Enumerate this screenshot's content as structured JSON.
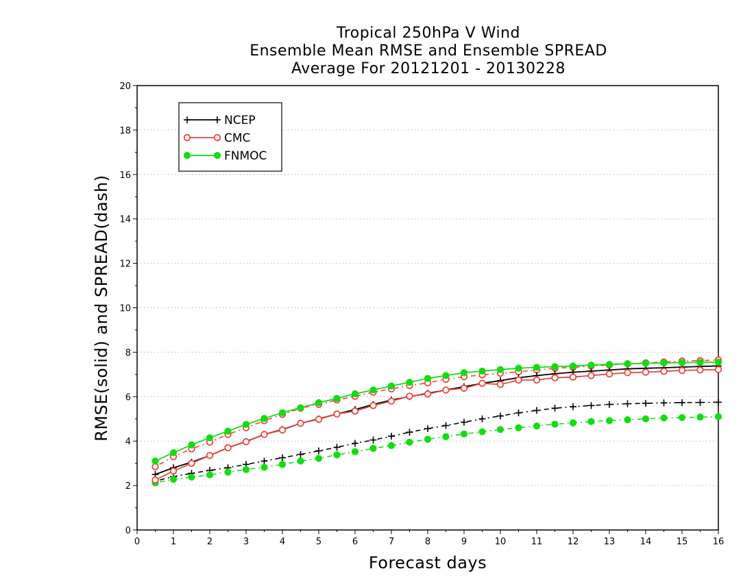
{
  "chart_data": {
    "type": "line",
    "title_lines": [
      "Tropical 250hPa V Wind",
      "Ensemble Mean RMSE and Ensemble SPREAD",
      "Average For 20121201 - 20130228"
    ],
    "xlabel": "Forecast days",
    "ylabel": "RMSE(solid) and SPREAD(dash)",
    "xlim": [
      0,
      16
    ],
    "ylim": [
      0,
      20
    ],
    "xticks": [
      0,
      1,
      2,
      3,
      4,
      5,
      6,
      7,
      8,
      9,
      10,
      11,
      12,
      13,
      14,
      15,
      16
    ],
    "yticks": [
      0,
      2,
      4,
      6,
      8,
      10,
      12,
      14,
      16,
      18,
      20
    ],
    "grid": "horizontal dotted",
    "legend_position": "top-left",
    "x": [
      0.5,
      1,
      1.5,
      2,
      2.5,
      3,
      3.5,
      4,
      4.5,
      5,
      5.5,
      6,
      6.5,
      7,
      7.5,
      8,
      8.5,
      9,
      9.5,
      10,
      10.5,
      11,
      11.5,
      12,
      12.5,
      13,
      13.5,
      14,
      14.5,
      15,
      15.5,
      16
    ],
    "series": [
      {
        "name": "NCEP",
        "metric": "RMSE",
        "style": "solid",
        "marker": "plus",
        "color": "#000000",
        "values": [
          2.5,
          2.8,
          3.05,
          3.35,
          3.7,
          3.98,
          4.3,
          4.52,
          4.8,
          5.0,
          5.22,
          5.42,
          5.65,
          5.85,
          6.0,
          6.15,
          6.3,
          6.45,
          6.6,
          6.72,
          6.85,
          6.95,
          7.03,
          7.1,
          7.15,
          7.2,
          7.25,
          7.28,
          7.3,
          7.33,
          7.36,
          7.38
        ]
      },
      {
        "name": "NCEP",
        "metric": "SPREAD",
        "style": "dash",
        "marker": "plus",
        "color": "#000000",
        "values": [
          2.2,
          2.4,
          2.55,
          2.68,
          2.8,
          2.95,
          3.1,
          3.25,
          3.4,
          3.56,
          3.72,
          3.9,
          4.05,
          4.22,
          4.4,
          4.56,
          4.7,
          4.85,
          5.0,
          5.13,
          5.27,
          5.38,
          5.48,
          5.55,
          5.6,
          5.65,
          5.68,
          5.7,
          5.72,
          5.73,
          5.74,
          5.75
        ]
      },
      {
        "name": "CMC",
        "metric": "RMSE",
        "style": "solid",
        "marker": "open-circle",
        "color": "#e8453c",
        "values": [
          2.25,
          2.65,
          3.0,
          3.35,
          3.7,
          3.97,
          4.3,
          4.5,
          4.8,
          4.98,
          5.22,
          5.35,
          5.6,
          5.8,
          6.02,
          6.12,
          6.3,
          6.38,
          6.6,
          6.55,
          6.75,
          6.75,
          6.85,
          6.88,
          6.95,
          7.02,
          7.08,
          7.1,
          7.14,
          7.18,
          7.2,
          7.22
        ]
      },
      {
        "name": "CMC",
        "metric": "SPREAD",
        "style": "dash",
        "marker": "open-circle",
        "color": "#e8453c",
        "values": [
          2.85,
          3.3,
          3.65,
          3.95,
          4.3,
          4.6,
          4.92,
          5.2,
          5.48,
          5.65,
          5.85,
          6.02,
          6.2,
          6.35,
          6.5,
          6.62,
          6.78,
          6.9,
          6.98,
          7.05,
          7.12,
          7.2,
          7.28,
          7.32,
          7.38,
          7.43,
          7.48,
          7.52,
          7.56,
          7.6,
          7.62,
          7.65
        ]
      },
      {
        "name": "FNMOC",
        "metric": "RMSE",
        "style": "solid",
        "marker": "filled-circle",
        "color": "#11dd11",
        "values": [
          3.1,
          3.48,
          3.83,
          4.15,
          4.45,
          4.75,
          5.02,
          5.28,
          5.5,
          5.73,
          5.92,
          6.13,
          6.3,
          6.48,
          6.65,
          6.82,
          6.95,
          7.08,
          7.15,
          7.22,
          7.28,
          7.32,
          7.35,
          7.38,
          7.42,
          7.45,
          7.48,
          7.5,
          7.52,
          7.53,
          7.54,
          7.55
        ]
      },
      {
        "name": "FNMOC",
        "metric": "SPREAD",
        "style": "dash",
        "marker": "filled-circle",
        "color": "#11dd11",
        "values": [
          2.12,
          2.28,
          2.38,
          2.48,
          2.6,
          2.72,
          2.82,
          2.95,
          3.1,
          3.22,
          3.38,
          3.52,
          3.67,
          3.8,
          3.95,
          4.08,
          4.2,
          4.32,
          4.42,
          4.52,
          4.6,
          4.68,
          4.76,
          4.82,
          4.88,
          4.92,
          4.96,
          5.0,
          5.04,
          5.06,
          5.08,
          5.1
        ]
      }
    ],
    "legend": [
      {
        "name": "NCEP",
        "marker": "plus",
        "color": "#000000"
      },
      {
        "name": "CMC",
        "marker": "open-circle",
        "color": "#e8453c"
      },
      {
        "name": "FNMOC",
        "marker": "filled-circle",
        "color": "#11dd11"
      }
    ]
  }
}
